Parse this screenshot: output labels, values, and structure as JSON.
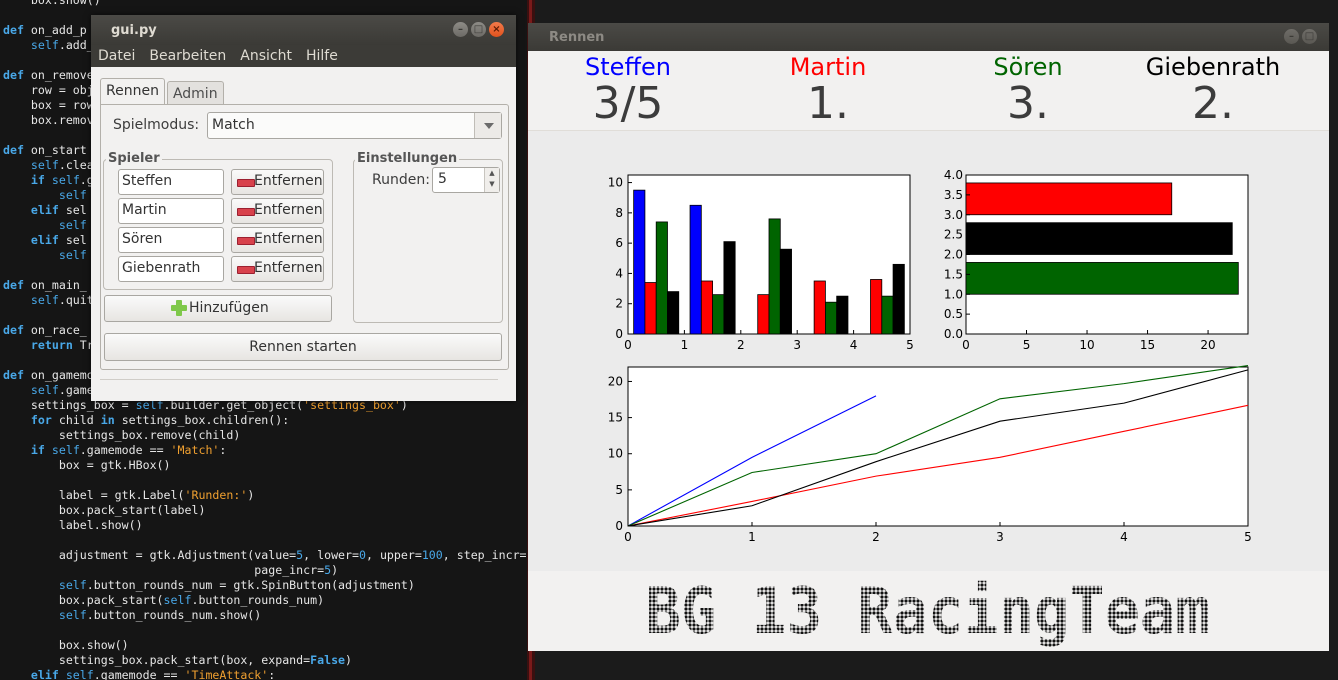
{
  "editor": {
    "lines": [
      "    box.show()",
      "",
      "def on_add_p",
      "    self.add_",
      "",
      "def on_remove",
      "    row = obj",
      "    box = row",
      "    box.remov",
      "",
      "def on_start",
      "    self.clea",
      "    if self.g",
      "        self",
      "    elif sel",
      "        self",
      "    elif sel",
      "        self",
      "",
      "def on_main_",
      "    self.quit",
      "",
      "def on_race_",
      "    return Tr",
      "",
      "def on_gamemo",
      "    self.game",
      "    settings_box = self.builder.get_object('settings_box')",
      "    for child in settings_box.children():",
      "        settings_box.remove(child)",
      "    if self.gamemode == 'Match':",
      "        box = gtk.HBox()",
      "",
      "        label = gtk.Label('Runden:')",
      "        box.pack_start(label)",
      "        label.show()",
      "",
      "        adjustment = gtk.Adjustment(value=5, lower=0, upper=100, step_incr=",
      "                                    page_incr=5)",
      "        self.button_rounds_num = gtk.SpinButton(adjustment)",
      "        box.pack_start(self.button_rounds_num)",
      "        self.button_rounds_num.show()",
      "",
      "        box.show()",
      "        settings_box.pack_start(box, expand=False)",
      "    elif self.gamemode == 'TimeAttack':"
    ]
  },
  "gui_window": {
    "title": "gui.py",
    "menu": [
      "Datei",
      "Bearbeiten",
      "Ansicht",
      "Hilfe"
    ],
    "tabs": [
      "Rennen",
      "Admin"
    ],
    "spielmodus_label": "Spielmodus:",
    "spielmodus_value": "Match",
    "spieler_title": "Spieler",
    "players": [
      "Steffen",
      "Martin",
      "Sören",
      "Giebenrath"
    ],
    "remove_label": "Entfernen",
    "einstellungen_title": "Einstellungen",
    "runden_label": "Runden:",
    "runden_value": "5",
    "add_label": "Hinzufügen",
    "start_label": "Rennen starten"
  },
  "race_window": {
    "title": "Rennen",
    "players": [
      {
        "name": "Steffen",
        "status": "3/5",
        "color": "#0000ff"
      },
      {
        "name": "Martin",
        "status": "1.",
        "color": "#ff0000"
      },
      {
        "name": "Sören",
        "status": "3.",
        "color": "#006400"
      },
      {
        "name": "Giebenrath",
        "status": "2.",
        "color": "#000000"
      }
    ],
    "logo_text": "BG 13 RacingTeam"
  },
  "chart_data": [
    {
      "type": "bar",
      "x_ticks": [
        0,
        1,
        2,
        3,
        4,
        5
      ],
      "y_ticks": [
        0,
        2,
        4,
        6,
        8,
        10
      ],
      "xlim": [
        0,
        5
      ],
      "ylim": [
        0,
        10.5
      ],
      "series": [
        {
          "color": "#0000ff",
          "x": [
            0,
            1
          ],
          "values": [
            9.5,
            8.5
          ]
        },
        {
          "color": "#ff0000",
          "x": [
            0,
            1,
            2,
            3,
            4
          ],
          "values": [
            3.4,
            3.5,
            2.6,
            3.5,
            3.6
          ]
        },
        {
          "color": "#006400",
          "x": [
            0,
            1,
            2,
            3,
            4
          ],
          "values": [
            7.4,
            2.6,
            7.6,
            2.1,
            2.5
          ]
        },
        {
          "color": "#000000",
          "x": [
            0,
            1,
            2,
            3,
            4
          ],
          "values": [
            2.8,
            6.1,
            5.6,
            2.5,
            4.6
          ]
        }
      ]
    },
    {
      "type": "bar",
      "orientation": "horizontal",
      "x_ticks": [
        0,
        5,
        10,
        15,
        20
      ],
      "y_ticks": [
        "0.0",
        "0.5",
        "1.0",
        "1.5",
        "2.0",
        "2.5",
        "3.0",
        "3.5",
        "4.0"
      ],
      "xlim": [
        0,
        23.3
      ],
      "ylim": [
        0,
        4
      ],
      "bars": [
        {
          "color": "#ff0000",
          "y": 3,
          "value": 17.0
        },
        {
          "color": "#000000",
          "y": 2,
          "value": 22.0
        },
        {
          "color": "#006400",
          "y": 1,
          "value": 22.5
        }
      ]
    },
    {
      "type": "line",
      "x_ticks": [
        0,
        1,
        2,
        3,
        4,
        5
      ],
      "y_ticks": [
        0,
        5,
        10,
        15,
        20
      ],
      "xlim": [
        0,
        5
      ],
      "ylim": [
        0,
        22
      ],
      "series": [
        {
          "color": "#0000ff",
          "x": [
            0,
            1,
            2
          ],
          "y": [
            0,
            9.5,
            18.0
          ]
        },
        {
          "color": "#ff0000",
          "x": [
            0,
            1,
            2,
            3,
            4,
            5
          ],
          "y": [
            0,
            3.4,
            6.9,
            9.5,
            13.1,
            16.7
          ]
        },
        {
          "color": "#006400",
          "x": [
            0,
            1,
            2,
            3,
            4,
            5
          ],
          "y": [
            0,
            7.4,
            10.0,
            17.6,
            19.7,
            22.2
          ]
        },
        {
          "color": "#000000",
          "x": [
            0,
            1,
            2,
            3,
            4,
            5
          ],
          "y": [
            0,
            2.8,
            8.9,
            14.5,
            17.0,
            21.6
          ]
        }
      ]
    }
  ]
}
